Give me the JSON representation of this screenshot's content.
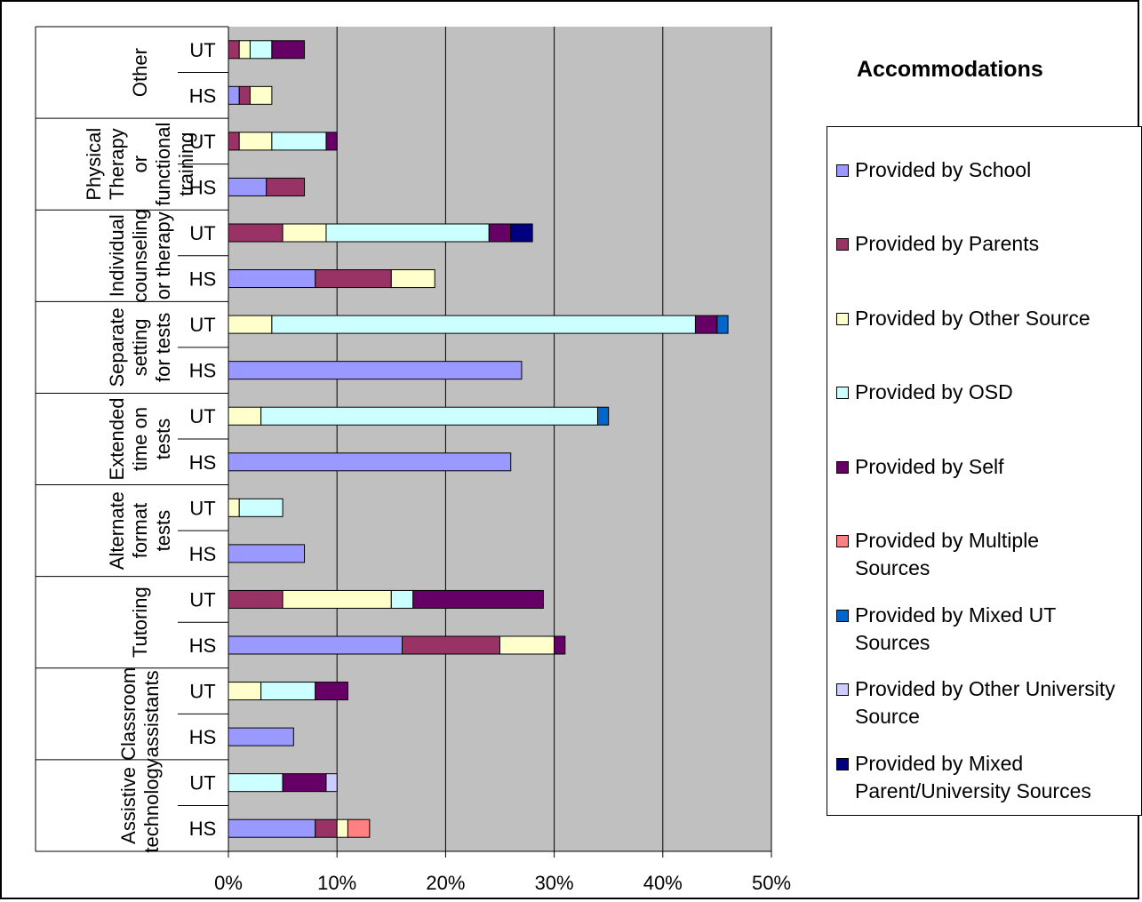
{
  "chart_data": {
    "type": "bar",
    "orientation": "horizontal",
    "stacked": true,
    "title": "Accommodations",
    "xlim": [
      0,
      50
    ],
    "x_ticks": [
      "0%",
      "10%",
      "20%",
      "30%",
      "40%",
      "50%"
    ],
    "grid": true,
    "legend_position": "right",
    "groups": [
      {
        "label": "Other",
        "lines": [
          "Other"
        ],
        "bars": [
          "UT",
          "HS"
        ]
      },
      {
        "label": "Physical Therapy or functional training",
        "lines": [
          "Physical",
          "Therapy",
          "or",
          "functional",
          "training"
        ],
        "bars": [
          "UT",
          "HS"
        ]
      },
      {
        "label": "Individual counseling or therapy",
        "lines": [
          "Individual",
          "counseling",
          "or therapy"
        ],
        "bars": [
          "UT",
          "HS"
        ]
      },
      {
        "label": "Separate setting for tests",
        "lines": [
          "Separate",
          "setting",
          "for tests"
        ],
        "bars": [
          "UT",
          "HS"
        ]
      },
      {
        "label": "Extended time on tests",
        "lines": [
          "Extended",
          "time on",
          "tests"
        ],
        "bars": [
          "UT",
          "HS"
        ]
      },
      {
        "label": "Alternate format tests",
        "lines": [
          "Alternate",
          "format",
          "tests"
        ],
        "bars": [
          "UT",
          "HS"
        ]
      },
      {
        "label": "Tutoring",
        "lines": [
          "Tutoring"
        ],
        "bars": [
          "UT",
          "HS"
        ]
      },
      {
        "label": "Classroom assistants",
        "lines": [
          "Classroom",
          "assistants"
        ],
        "bars": [
          "UT",
          "HS"
        ]
      },
      {
        "label": "Assistive technology",
        "lines": [
          "Assistive",
          "technology"
        ],
        "bars": [
          "UT",
          "HS"
        ]
      }
    ],
    "categories": [
      "Other UT",
      "Other HS",
      "Physical Therapy or functional training UT",
      "Physical Therapy or functional training HS",
      "Individual counseling or therapy UT",
      "Individual counseling or therapy HS",
      "Separate setting for tests UT",
      "Separate setting for tests HS",
      "Extended time on tests UT",
      "Extended time on tests HS",
      "Alternate format tests UT",
      "Alternate format tests HS",
      "Tutoring UT",
      "Tutoring HS",
      "Classroom assistants UT",
      "Classroom assistants HS",
      "Assistive technology UT",
      "Assistive technology HS"
    ],
    "series": [
      {
        "name": "Provided by School",
        "color": "#9999ff",
        "values": [
          0,
          1,
          0,
          3.5,
          0,
          8,
          0,
          27,
          0,
          26,
          0,
          7,
          0,
          16,
          0,
          6,
          0,
          8
        ]
      },
      {
        "name": "Provided by Parents",
        "color": "#993366",
        "values": [
          1,
          1,
          1,
          3.5,
          5,
          7,
          0,
          0,
          0,
          0,
          0,
          0,
          5,
          9,
          0,
          0,
          0,
          2
        ]
      },
      {
        "name": "Provided by Other Source",
        "color": "#ffffcc",
        "values": [
          1,
          2,
          3,
          0,
          4,
          4,
          4,
          0,
          3,
          0,
          1,
          0,
          10,
          5,
          3,
          0,
          0,
          1
        ]
      },
      {
        "name": "Provided by OSD",
        "color": "#ccffff",
        "values": [
          2,
          0,
          5,
          0,
          15,
          0,
          39,
          0,
          31,
          0,
          4,
          0,
          2,
          0,
          5,
          0,
          5,
          0
        ]
      },
      {
        "name": "Provided by Self",
        "color": "#660066",
        "values": [
          3,
          0,
          1,
          0,
          2,
          0,
          2,
          0,
          0,
          0,
          0,
          0,
          12,
          1,
          3,
          0,
          4,
          0
        ]
      },
      {
        "name": "Provided by Multiple Sources",
        "color": "#ff8080",
        "values": [
          0,
          0,
          0,
          0,
          0,
          0,
          0,
          0,
          0,
          0,
          0,
          0,
          0,
          0,
          0,
          0,
          0,
          2
        ]
      },
      {
        "name": "Provided by Mixed UT Sources",
        "color": "#0066cc",
        "values": [
          0,
          0,
          0,
          0,
          0,
          0,
          1,
          0,
          1,
          0,
          0,
          0,
          0,
          0,
          0,
          0,
          0,
          0
        ]
      },
      {
        "name": "Provided by Other University Source",
        "color": "#ccccff",
        "values": [
          0,
          0,
          0,
          0,
          0,
          0,
          0,
          0,
          0,
          0,
          0,
          0,
          0,
          0,
          0,
          0,
          1,
          0
        ]
      },
      {
        "name": "Provided by Mixed Parent/University Sources",
        "color": "#000080",
        "values": [
          0,
          0,
          0,
          0,
          2,
          0,
          0,
          0,
          0,
          0,
          0,
          0,
          0,
          0,
          0,
          0,
          0,
          0
        ]
      }
    ]
  },
  "legend": {
    "title": "Accommodations",
    "items": [
      {
        "lines": [
          "Provided by School"
        ]
      },
      {
        "lines": [
          "Provided by Parents"
        ]
      },
      {
        "lines": [
          "Provided by Other Source"
        ]
      },
      {
        "lines": [
          "Provided by OSD"
        ]
      },
      {
        "lines": [
          "Provided by Self"
        ]
      },
      {
        "lines": [
          "Provided by Multiple",
          "Sources"
        ]
      },
      {
        "lines": [
          "Provided by Mixed UT",
          "Sources"
        ]
      },
      {
        "lines": [
          "Provided by Other University",
          "Source"
        ]
      },
      {
        "lines": [
          "Provided by Mixed",
          "Parent/University Sources"
        ]
      }
    ]
  }
}
